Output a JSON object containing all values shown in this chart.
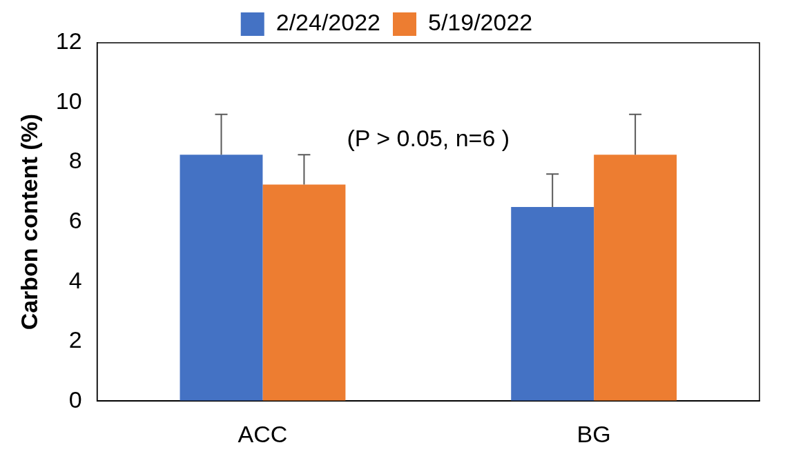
{
  "chart_data": {
    "type": "bar",
    "ylabel": "Carbon content (%)",
    "categories": [
      "ACC",
      "BG"
    ],
    "series": [
      {
        "name": "2/24/2022",
        "color": "#4472c4",
        "values": [
          8.25,
          6.5
        ],
        "errors": [
          [
            8.25,
            9.6
          ],
          [
            6.5,
            7.6
          ]
        ]
      },
      {
        "name": "5/19/2022",
        "color": "#ed7d31",
        "values": [
          7.25,
          8.25
        ],
        "errors": [
          [
            7.25,
            8.25
          ],
          [
            8.25,
            9.6
          ]
        ]
      }
    ],
    "ylim": [
      0,
      12
    ],
    "yticks": [
      0,
      2,
      4,
      6,
      8,
      10,
      12
    ],
    "grid": false,
    "legend": "top",
    "annotations": [
      "(P > 0.05, n=6 )"
    ]
  }
}
